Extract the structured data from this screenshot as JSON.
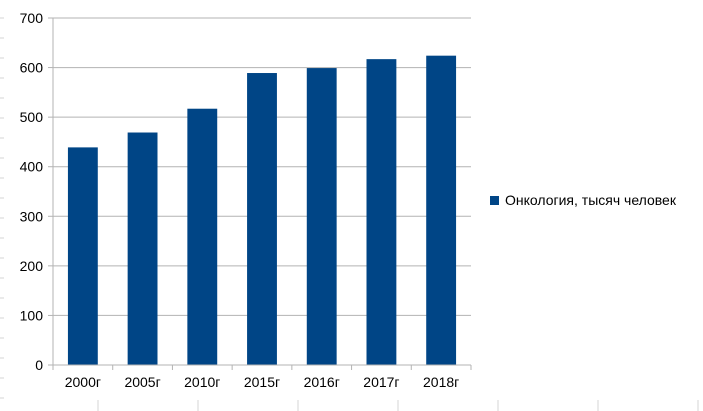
{
  "chart_data": {
    "type": "bar",
    "categories": [
      "2000г",
      "2005г",
      "2010г",
      "2015г",
      "2016г",
      "2017г",
      "2018г"
    ],
    "series": [
      {
        "name": "Онкология, тысяч человек",
        "values": [
          439,
          469,
          517,
          589,
          599,
          617,
          624
        ],
        "color": "#004586"
      }
    ],
    "ylim": [
      0,
      700
    ],
    "yticks": [
      "0",
      "100",
      "200",
      "300",
      "400",
      "500",
      "600",
      "700"
    ],
    "grid": true,
    "legend": "right"
  }
}
